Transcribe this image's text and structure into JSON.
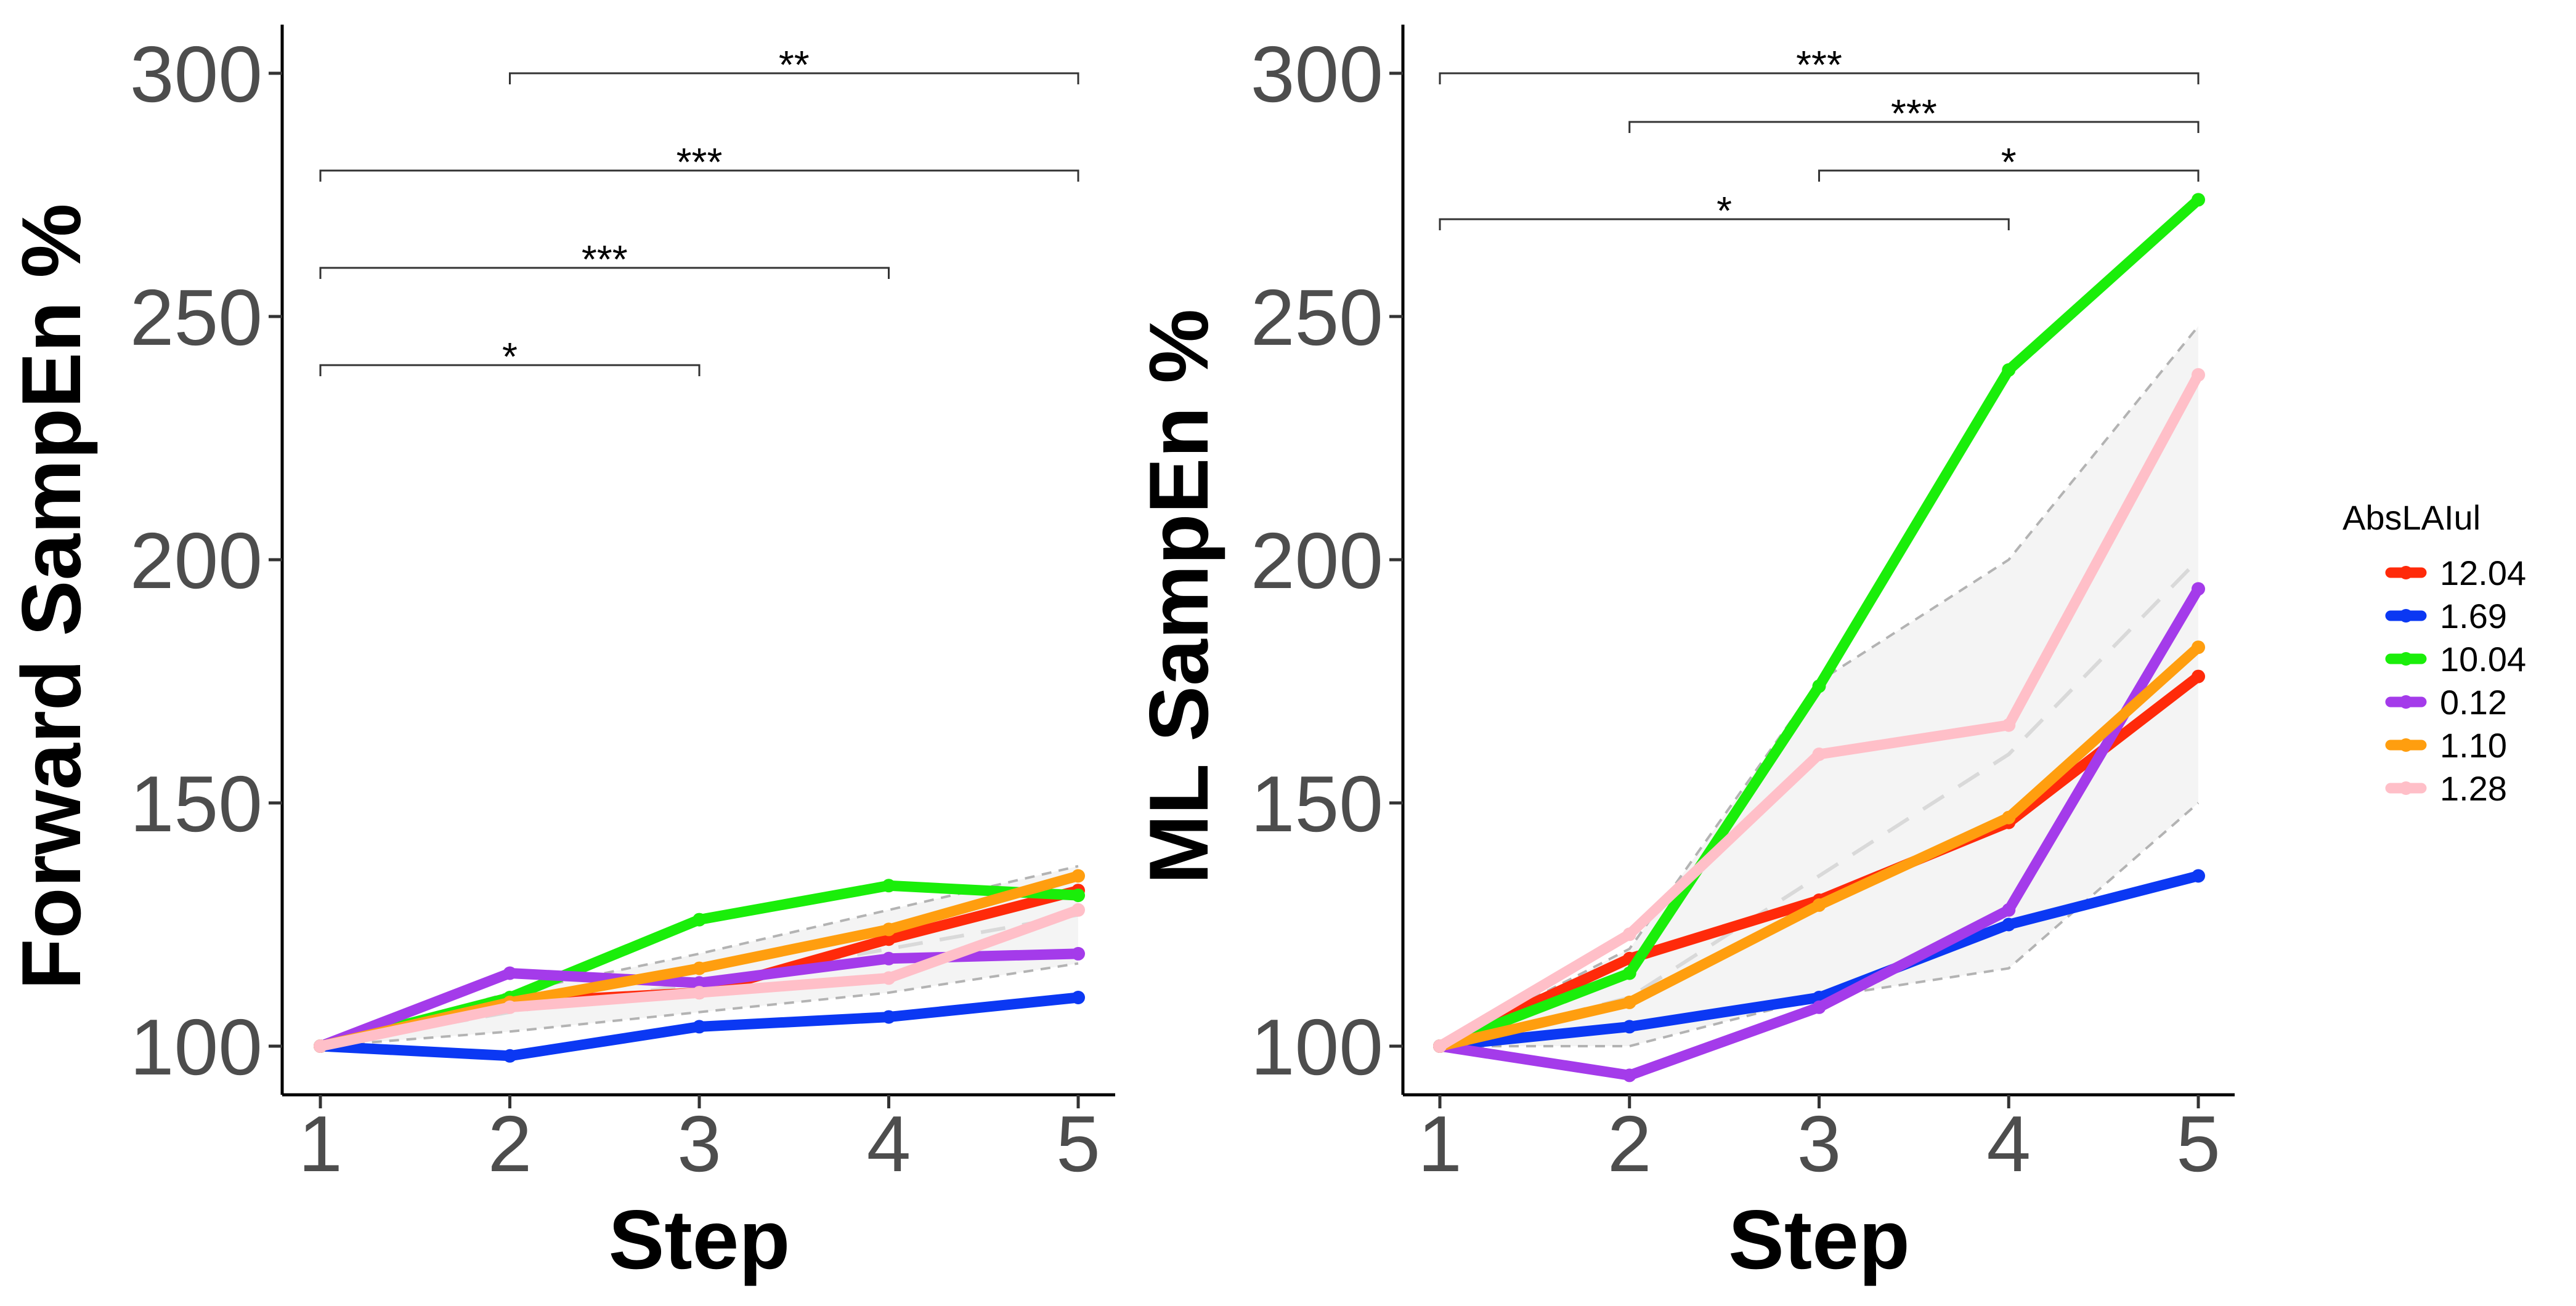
{
  "chart_data": [
    {
      "type": "line",
      "id": "forward",
      "xlabel": "Step",
      "ylabel": "Forward SampEn %",
      "x": [
        1,
        2,
        3,
        4,
        5
      ],
      "xticks": [
        "1",
        "2",
        "3",
        "4",
        "5"
      ],
      "ylim": [
        90,
        310
      ],
      "yticks": [
        "100",
        "150",
        "200",
        "250",
        "300"
      ],
      "grid": false,
      "series": [
        {
          "name": "12.04",
          "color": "#ff2a0a",
          "values": [
            100,
            109,
            111,
            122,
            132
          ]
        },
        {
          "name": "1.69",
          "color": "#0b38f3",
          "values": [
            100,
            98,
            104,
            106,
            110
          ]
        },
        {
          "name": "10.04",
          "color": "#1aee0a",
          "values": [
            100,
            110,
            126,
            133,
            131
          ]
        },
        {
          "name": "0.12",
          "color": "#a43bea",
          "values": [
            100,
            115,
            113,
            118,
            119
          ]
        },
        {
          "name": "1.10",
          "color": "#ff9e0f",
          "values": [
            100,
            109,
            116,
            124,
            135
          ]
        },
        {
          "name": "1.28",
          "color": "#ffbfc8",
          "values": [
            100,
            108,
            111,
            114,
            128
          ]
        }
      ],
      "band": {
        "upper": [
          100,
          111,
          119,
          128,
          137
        ],
        "mean": [
          100,
          107,
          113,
          120,
          127
        ],
        "lower": [
          100,
          103,
          107,
          111,
          117
        ]
      },
      "significance": [
        {
          "from": 2,
          "to": 5,
          "y": 300,
          "label": "**"
        },
        {
          "from": 1,
          "to": 5,
          "y": 280,
          "label": "***"
        },
        {
          "from": 1,
          "to": 4,
          "y": 260,
          "label": "***"
        },
        {
          "from": 1,
          "to": 3,
          "y": 240,
          "label": "*"
        }
      ]
    },
    {
      "type": "line",
      "id": "ml",
      "xlabel": "Step",
      "ylabel": "ML SampEn %",
      "x": [
        1,
        2,
        3,
        4,
        5
      ],
      "xticks": [
        "1",
        "2",
        "3",
        "4",
        "5"
      ],
      "ylim": [
        90,
        310
      ],
      "yticks": [
        "100",
        "150",
        "200",
        "250",
        "300"
      ],
      "grid": false,
      "series": [
        {
          "name": "12.04",
          "color": "#ff2a0a",
          "values": [
            100,
            118,
            130,
            146,
            176
          ]
        },
        {
          "name": "1.69",
          "color": "#0b38f3",
          "values": [
            100,
            104,
            110,
            125,
            135
          ]
        },
        {
          "name": "10.04",
          "color": "#1aee0a",
          "values": [
            100,
            115,
            174,
            239,
            274
          ]
        },
        {
          "name": "0.12",
          "color": "#a43bea",
          "values": [
            100,
            94,
            108,
            128,
            194
          ]
        },
        {
          "name": "1.10",
          "color": "#ff9e0f",
          "values": [
            100,
            109,
            129,
            147,
            182
          ]
        },
        {
          "name": "1.28",
          "color": "#ffbfc8",
          "values": [
            100,
            123,
            160,
            166,
            238
          ]
        }
      ],
      "band": {
        "upper": [
          100,
          120,
          175,
          200,
          248
        ],
        "mean": [
          100,
          110,
          135,
          160,
          200
        ],
        "lower": [
          100,
          100,
          110,
          116,
          150
        ]
      },
      "significance": [
        {
          "from": 1,
          "to": 5,
          "y": 300,
          "label": "***"
        },
        {
          "from": 2,
          "to": 5,
          "y": 290,
          "label": "***"
        },
        {
          "from": 3,
          "to": 5,
          "y": 280,
          "label": "*"
        },
        {
          "from": 1,
          "to": 4,
          "y": 270,
          "label": "*"
        }
      ]
    }
  ],
  "legend": {
    "title": "AbsLAIul",
    "items": [
      {
        "label": "12.04",
        "color": "#ff2a0a"
      },
      {
        "label": "1.69",
        "color": "#0b38f3"
      },
      {
        "label": "10.04",
        "color": "#1aee0a"
      },
      {
        "label": "0.12",
        "color": "#a43bea"
      },
      {
        "label": "1.10",
        "color": "#ff9e0f"
      },
      {
        "label": "1.28",
        "color": "#ffbfc8"
      }
    ]
  }
}
